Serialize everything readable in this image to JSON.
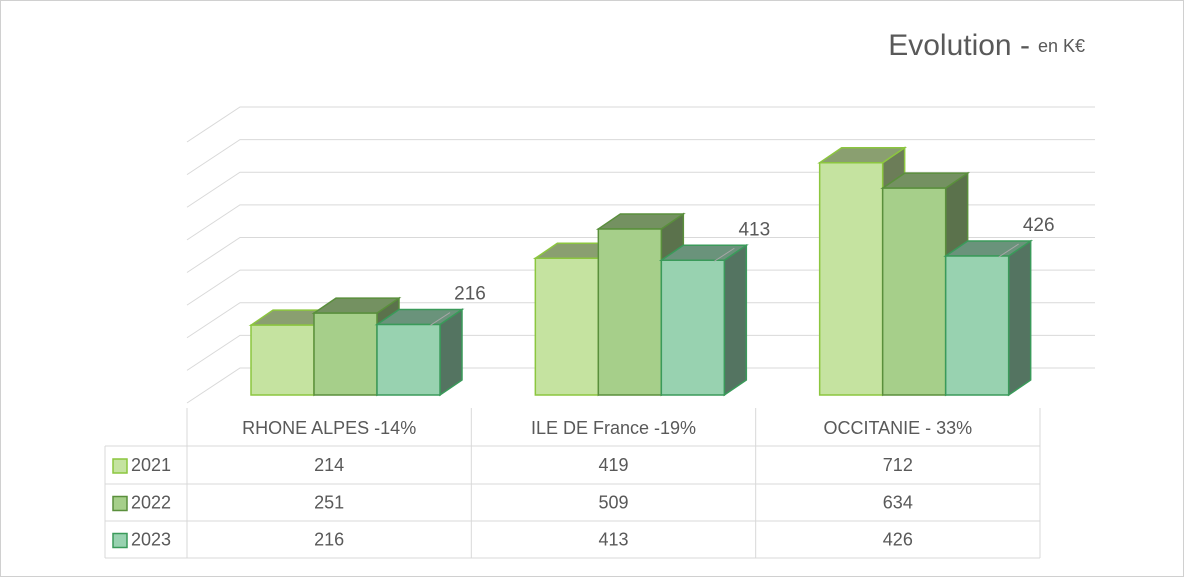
{
  "chart_data": {
    "type": "bar3d",
    "title": "Evolution -",
    "title_unit": "en K€",
    "categories": [
      "RHONE ALPES -14%",
      "ILE DE France -19%",
      "OCCITANIE - 33%"
    ],
    "series": [
      {
        "name": "2021",
        "color": "#c5e3a0",
        "values": [
          214,
          419,
          712
        ]
      },
      {
        "name": "2022",
        "color": "#a6cf8a",
        "values": [
          251,
          509,
          634
        ]
      },
      {
        "name": "2023",
        "color": "#98d2b0",
        "values": [
          216,
          413,
          426
        ]
      }
    ],
    "data_labels_series": 2,
    "ylim": [
      0,
      800
    ],
    "yticks": [
      0,
      100,
      200,
      300,
      400,
      500,
      600,
      700,
      800
    ],
    "grid": true,
    "data_table": true
  }
}
